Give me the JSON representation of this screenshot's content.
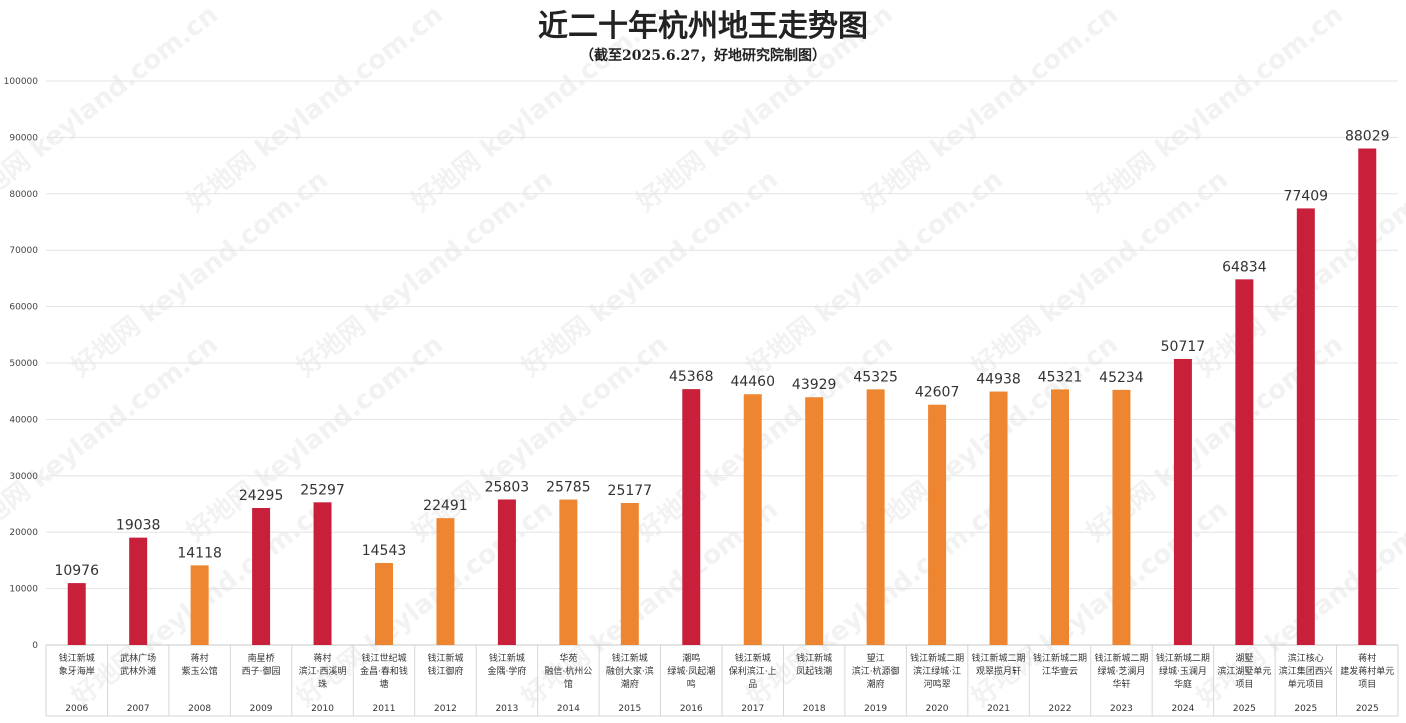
{
  "chart_data": {
    "type": "bar",
    "title": "近二十年杭州地王走势图",
    "subtitle": "（截至2025.6.27，好地研究院制图）",
    "ylim": [
      0,
      100000
    ],
    "yticks": [
      0,
      10000,
      20000,
      30000,
      40000,
      50000,
      60000,
      70000,
      80000,
      90000,
      100000
    ],
    "grid": true,
    "watermark": "好地网 keyland.com.cn",
    "colors": {
      "red": "#c8203a",
      "orange": "#ee8631"
    },
    "categories": [
      {
        "year": "2006",
        "lines": [
          "钱江新城",
          "象牙海岸"
        ],
        "value": 10976,
        "color": "red"
      },
      {
        "year": "2007",
        "lines": [
          "武林广场",
          "武林外滩"
        ],
        "value": 19038,
        "color": "red"
      },
      {
        "year": "2008",
        "lines": [
          "蒋村",
          "紫玉公馆"
        ],
        "value": 14118,
        "color": "orange"
      },
      {
        "year": "2009",
        "lines": [
          "南星桥",
          "西子·御园"
        ],
        "value": 24295,
        "color": "red"
      },
      {
        "year": "2010",
        "lines": [
          "蒋村",
          "滨江·西溪明",
          "珠"
        ],
        "value": 25297,
        "color": "red"
      },
      {
        "year": "2011",
        "lines": [
          "钱江世纪城",
          "金昌·春和钱",
          "塘"
        ],
        "value": 14543,
        "color": "orange"
      },
      {
        "year": "2012",
        "lines": [
          "钱江新城",
          "钱江御府"
        ],
        "value": 22491,
        "color": "orange"
      },
      {
        "year": "2013",
        "lines": [
          "钱江新城",
          "金隅·学府"
        ],
        "value": 25803,
        "color": "red"
      },
      {
        "year": "2014",
        "lines": [
          "华苑",
          "融信·杭州公",
          "馆"
        ],
        "value": 25785,
        "color": "orange"
      },
      {
        "year": "2015",
        "lines": [
          "钱江新城",
          "融创大家·滨",
          "潮府"
        ],
        "value": 25177,
        "color": "orange"
      },
      {
        "year": "2016",
        "lines": [
          "潮鸣",
          "绿城·凤起潮",
          "鸣"
        ],
        "value": 45368,
        "color": "red"
      },
      {
        "year": "2017",
        "lines": [
          "钱江新城",
          "保利滨江·上",
          "品"
        ],
        "value": 44460,
        "color": "orange"
      },
      {
        "year": "2018",
        "lines": [
          "钱江新城",
          "凤起钱潮"
        ],
        "value": 43929,
        "color": "orange"
      },
      {
        "year": "2019",
        "lines": [
          "望江",
          "滨江·杭源御",
          "潮府"
        ],
        "value": 45325,
        "color": "orange"
      },
      {
        "year": "2020",
        "lines": [
          "钱江新城二期",
          "滨江绿城·江",
          "河鸣翠"
        ],
        "value": 42607,
        "color": "orange"
      },
      {
        "year": "2021",
        "lines": [
          "钱江新城二期",
          "观翠揽月轩"
        ],
        "value": 44938,
        "color": "orange"
      },
      {
        "year": "2022",
        "lines": [
          "钱江新城二期",
          "江华壹云"
        ],
        "value": 45321,
        "color": "orange"
      },
      {
        "year": "2023",
        "lines": [
          "钱江新城二期",
          "绿城·芝澜月",
          "华轩"
        ],
        "value": 45234,
        "color": "orange"
      },
      {
        "year": "2024",
        "lines": [
          "钱江新城二期",
          "绿城·玉澜月",
          "华庭"
        ],
        "value": 50717,
        "color": "red"
      },
      {
        "year": "2025",
        "lines": [
          "湖墅",
          "滨江湖墅单元",
          "项目"
        ],
        "value": 64834,
        "color": "red"
      },
      {
        "year": "2025",
        "lines": [
          "滨江核心",
          "滨江集团西兴",
          "单元项目"
        ],
        "value": 77409,
        "color": "red"
      },
      {
        "year": "2025",
        "lines": [
          "蒋村",
          "建发蒋村单元",
          "项目"
        ],
        "value": 88029,
        "color": "red"
      }
    ]
  }
}
